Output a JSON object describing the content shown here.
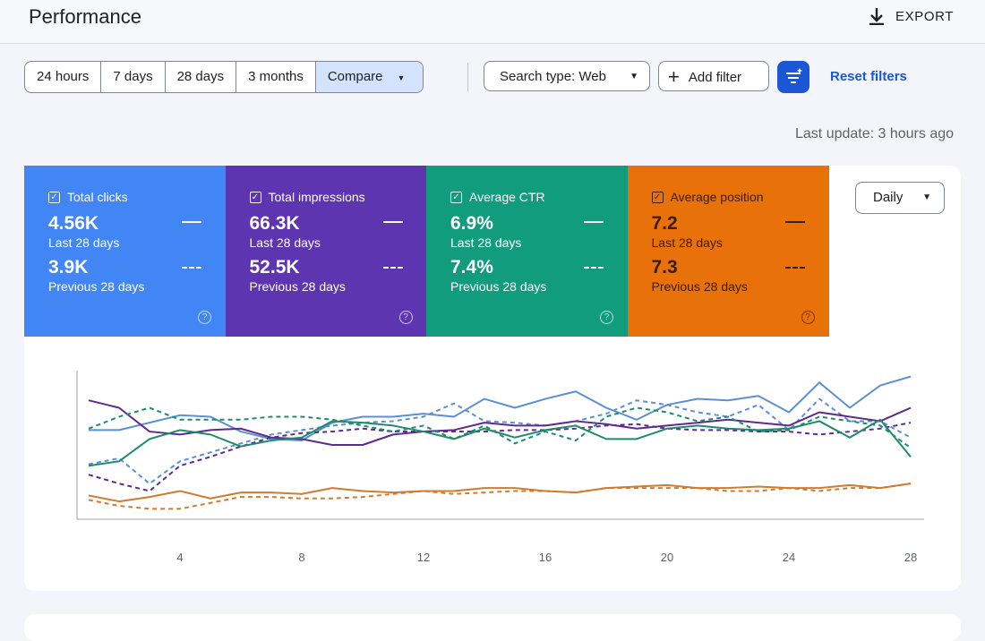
{
  "header": {
    "title": "Performance",
    "export": "EXPORT"
  },
  "filters": {
    "ranges": [
      "24 hours",
      "7 days",
      "28 days",
      "3 months",
      "Compare"
    ],
    "search_type": "Search type: Web",
    "add_filter": "Add filter",
    "reset": "Reset filters"
  },
  "last_update": "Last update: 3 hours ago",
  "cards": [
    {
      "title": "Total clicks",
      "current": "4.56K",
      "current_label": "Last 28 days",
      "previous": "3.9K",
      "previous_label": "Previous 28 days",
      "color": "#4285f4",
      "text_color": "#ffffff"
    },
    {
      "title": "Total impressions",
      "current": "66.3K",
      "current_label": "Last 28 days",
      "previous": "52.5K",
      "previous_label": "Previous 28 days",
      "color": "#5e35b1",
      "text_color": "#ffffff"
    },
    {
      "title": "Average CTR",
      "current": "6.9%",
      "current_label": "Last 28 days",
      "previous": "7.4%",
      "previous_label": "Previous 28 days",
      "color": "#129c7e",
      "text_color": "#ffffff"
    },
    {
      "title": "Average position",
      "current": "7.2",
      "current_label": "Last 28 days",
      "previous": "7.3",
      "previous_label": "Previous 28 days",
      "color": "#e8710a",
      "text_color": "#3b1d00"
    }
  ],
  "granularity": "Daily",
  "chart_data": {
    "type": "line",
    "x": [
      1,
      2,
      3,
      4,
      5,
      6,
      7,
      8,
      9,
      10,
      11,
      12,
      13,
      14,
      15,
      16,
      17,
      18,
      19,
      20,
      21,
      22,
      23,
      24,
      25,
      26,
      27,
      28
    ],
    "xlim": [
      1,
      28
    ],
    "xticks": [
      4,
      8,
      12,
      16,
      20,
      24,
      28
    ],
    "ylim": [
      0,
      100
    ],
    "series": [
      {
        "color": "#5b8fd6",
        "dashed": false,
        "values": [
          60,
          60,
          65,
          70,
          69,
          59,
          54,
          53,
          65,
          69,
          69,
          71,
          69,
          81,
          75,
          81,
          86,
          75,
          67,
          77,
          81,
          80,
          83,
          72,
          92,
          75,
          90,
          96
        ]
      },
      {
        "color": "#5b8fd6",
        "dashed": true,
        "values": [
          37,
          41,
          24,
          39,
          45,
          51,
          57,
          60,
          63,
          65,
          66,
          69,
          78,
          66,
          65,
          63,
          66,
          71,
          80,
          77,
          72,
          69,
          77,
          60,
          81,
          66,
          66,
          55
        ]
      },
      {
        "color": "#5e2a90",
        "dashed": false,
        "values": [
          80,
          75,
          59,
          57,
          60,
          61,
          55,
          54,
          50,
          50,
          57,
          59,
          60,
          65,
          63,
          63,
          66,
          64,
          61,
          63,
          65,
          67,
          65,
          63,
          72,
          69,
          66,
          75
        ]
      },
      {
        "color": "#5e2a90",
        "dashed": true,
        "values": [
          30,
          24,
          19,
          36,
          42,
          49,
          55,
          58,
          59,
          61,
          59,
          59,
          59,
          59,
          60,
          60,
          61,
          63,
          64,
          61,
          60,
          60,
          59,
          59,
          57,
          59,
          61,
          65
        ]
      },
      {
        "color": "#1e8a6e",
        "dashed": false,
        "values": [
          36,
          39,
          54,
          60,
          57,
          49,
          53,
          55,
          66,
          65,
          63,
          59,
          54,
          61,
          55,
          60,
          63,
          54,
          54,
          61,
          63,
          61,
          60,
          61,
          66,
          55,
          67,
          42
        ]
      },
      {
        "color": "#1e8a6e",
        "dashed": true,
        "values": [
          61,
          69,
          75,
          67,
          67,
          67,
          69,
          69,
          67,
          63,
          59,
          63,
          54,
          63,
          51,
          59,
          53,
          69,
          75,
          72,
          66,
          69,
          59,
          60,
          69,
          66,
          63,
          48
        ]
      },
      {
        "color": "#d07b2e",
        "dashed": false,
        "values": [
          16,
          12,
          15,
          19,
          14,
          18,
          18,
          17,
          21,
          19,
          18,
          19,
          19,
          21,
          21,
          19,
          18,
          21,
          22,
          23,
          21,
          21,
          22,
          21,
          21,
          23,
          21,
          24
        ]
      },
      {
        "color": "#d07b2e",
        "dashed": true,
        "values": [
          13,
          9,
          7,
          7,
          11,
          15,
          15,
          14,
          14,
          15,
          17,
          19,
          17,
          18,
          19,
          19,
          18,
          21,
          21,
          21,
          21,
          19,
          19,
          21,
          19,
          21,
          21,
          24
        ]
      }
    ]
  }
}
